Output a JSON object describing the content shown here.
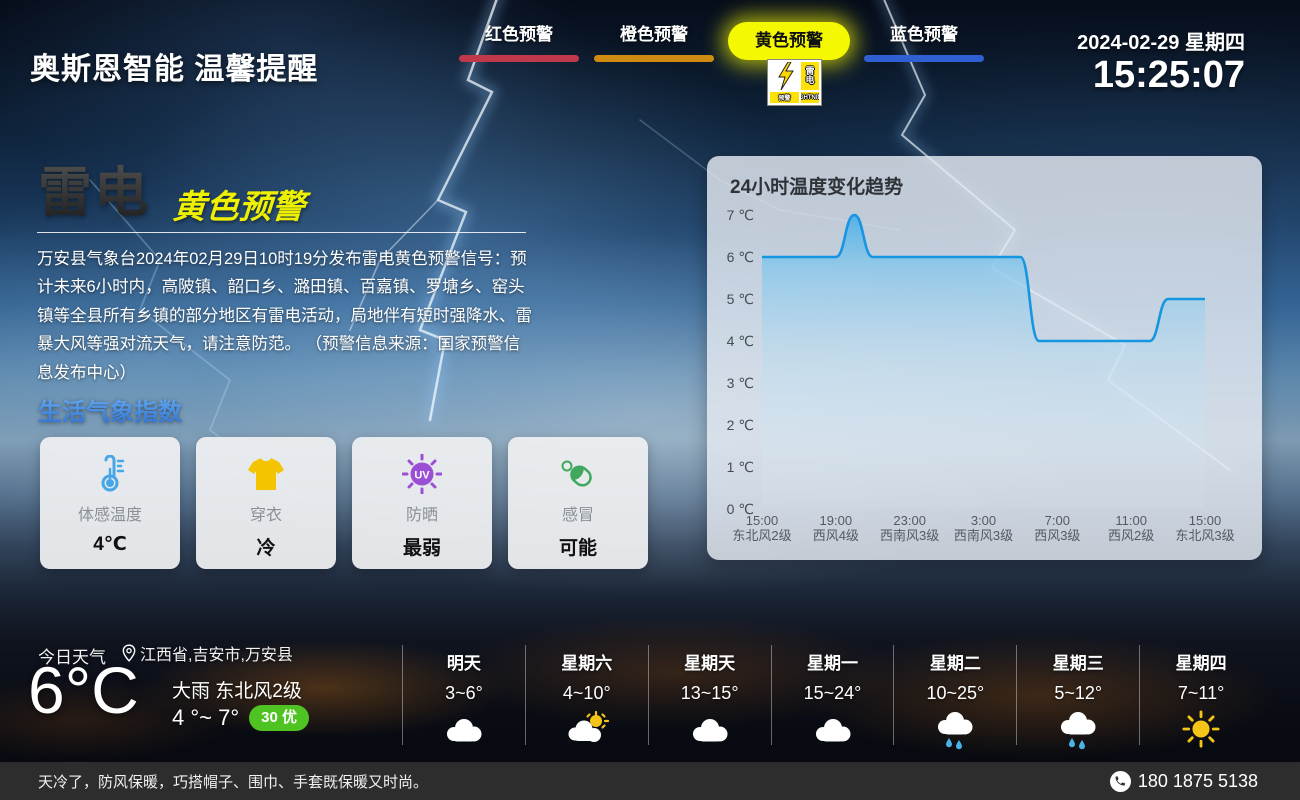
{
  "header": {
    "title": "奥斯恩智能 温馨提醒",
    "tabs": [
      {
        "label": "红色预警",
        "color": "#c0394b",
        "active": false
      },
      {
        "label": "橙色预警",
        "color": "#cf8a12",
        "active": false
      },
      {
        "label": "黄色预警",
        "color": "#f4f800",
        "active": true
      },
      {
        "label": "蓝色预警",
        "color": "#2e5fd3",
        "active": false
      }
    ],
    "warning_badge": {
      "main_text_line1": "雷",
      "main_text_line2": "电",
      "sub_left": "预警",
      "sub_right": "LIGHTNING"
    },
    "date": "2024-02-29 星期四",
    "time": "15:25:07"
  },
  "alert": {
    "type": "雷电",
    "level": "黄色预警",
    "description": "万安县气象台2024年02月29日10时19分发布雷电黄色预警信号：预计未来6小时内，高陂镇、韶口乡、潞田镇、百嘉镇、罗塘乡、窑头镇等全县所有乡镇的部分地区有雷电活动，局地伴有短时强降水、雷暴大风等强对流天气，请注意防范。 （预警信息来源：国家预警信息发布中心）"
  },
  "life_index": {
    "title": "生活气象指数",
    "items": [
      {
        "icon": "thermometer-icon",
        "color": "#45a7e8",
        "label": "体感温度",
        "value": "4℃"
      },
      {
        "icon": "tshirt-icon",
        "color": "#f5c400",
        "label": "穿衣",
        "value": "冷"
      },
      {
        "icon": "uv-icon",
        "color": "#9b4fd4",
        "label": "防晒",
        "value": "最弱"
      },
      {
        "icon": "capsule-icon",
        "color": "#3fa85c",
        "label": "感冒",
        "value": "可能"
      }
    ]
  },
  "chart_data": {
    "type": "area",
    "title": "24小时温度变化趋势",
    "ylabel": "℃",
    "ylim": [
      0,
      7
    ],
    "hours_span": 24,
    "grid": false,
    "y_ticks": [
      "7 ℃",
      "6 ℃",
      "5 ℃",
      "4 ℃",
      "3 ℃",
      "2 ℃",
      "1 ℃",
      "0 ℃"
    ],
    "x_ticks": [
      {
        "time": "15:00",
        "wind": "东北风2级"
      },
      {
        "time": "19:00",
        "wind": "西风4级"
      },
      {
        "time": "23:00",
        "wind": "西南风3级"
      },
      {
        "time": "3:00",
        "wind": "西南风3级"
      },
      {
        "time": "7:00",
        "wind": "西风3级"
      },
      {
        "time": "11:00",
        "wind": "西风2级"
      },
      {
        "time": "15:00",
        "wind": "东北风3级"
      }
    ],
    "series": [
      {
        "name": "温度",
        "hour_offsets_from_15_00": [
          0,
          1,
          2,
          3,
          4,
          5,
          6,
          7,
          8,
          9,
          10,
          11,
          12,
          13,
          14,
          15,
          16,
          17,
          18,
          19,
          20,
          21,
          22,
          23,
          24
        ],
        "values": [
          6,
          6,
          6,
          6,
          6,
          7,
          6,
          6,
          6,
          6,
          6,
          6,
          6,
          6,
          6,
          4,
          4,
          4,
          4,
          4,
          4,
          4,
          5,
          5,
          5
        ]
      }
    ],
    "line_color": "#1695e0",
    "fill_top_color": "#4fb0e6",
    "legend_position": "none"
  },
  "today": {
    "label": "今日天气",
    "location": "江西省,吉安市,万安县",
    "temperature": "6°C",
    "condition": "大雨 东北风2级",
    "range": "4 °~ 7°",
    "aqi": "30 优",
    "aqi_color": "#4ec321"
  },
  "forecast": [
    {
      "day": "明天",
      "range": "3~6°",
      "icon": "cloudy-icon"
    },
    {
      "day": "星期六",
      "range": "4~10°",
      "icon": "partly-sunny-icon"
    },
    {
      "day": "星期天",
      "range": "13~15°",
      "icon": "cloudy-icon"
    },
    {
      "day": "星期一",
      "range": "15~24°",
      "icon": "cloudy-icon"
    },
    {
      "day": "星期二",
      "range": "10~25°",
      "icon": "rain-icon"
    },
    {
      "day": "星期三",
      "range": "5~12°",
      "icon": "rain-icon"
    },
    {
      "day": "星期四",
      "range": "7~11°",
      "icon": "sunny-icon"
    }
  ],
  "footer": {
    "tip": "天冷了，防风保暖，巧搭帽子、围巾、手套既保暖又时尚。",
    "phone": "180 1875 5138"
  }
}
